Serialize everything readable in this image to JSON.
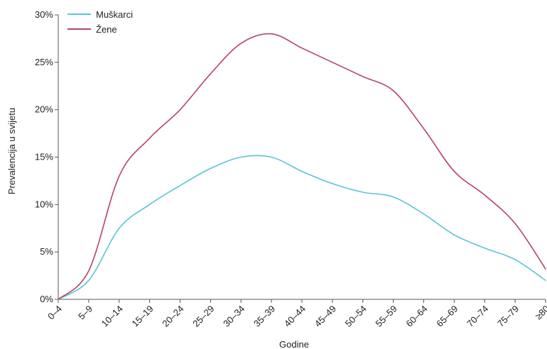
{
  "chart_data": {
    "type": "line",
    "title": "",
    "xlabel": "Godine",
    "ylabel": "Prevalencija u svijetu",
    "categories": [
      "0–4",
      "5–9",
      "10–14",
      "15–19",
      "20–24",
      "25–29",
      "30–34",
      "35–39",
      "40–44",
      "45–49",
      "50–54",
      "55–59",
      "60–64",
      "65–69",
      "70–74",
      "75–79",
      "≥80"
    ],
    "y_ticks": [
      "0%",
      "5%",
      "10%",
      "15%",
      "20%",
      "25%",
      "30%"
    ],
    "ylim": [
      0,
      30
    ],
    "grid": false,
    "legend_position": "top-left",
    "series": [
      {
        "name": "Muškarci",
        "color": "#5bc4d4",
        "values": [
          0,
          2,
          7.5,
          10,
          12,
          13.8,
          15,
          15,
          13.5,
          12.2,
          11.3,
          10.8,
          9,
          6.8,
          5.4,
          4.2,
          2
        ]
      },
      {
        "name": "Žene",
        "color": "#b5436b",
        "values": [
          0,
          3,
          13,
          17,
          20,
          23.8,
          27,
          28,
          26.5,
          25,
          23.5,
          22,
          18,
          13.5,
          11,
          8,
          3.2
        ]
      }
    ]
  }
}
